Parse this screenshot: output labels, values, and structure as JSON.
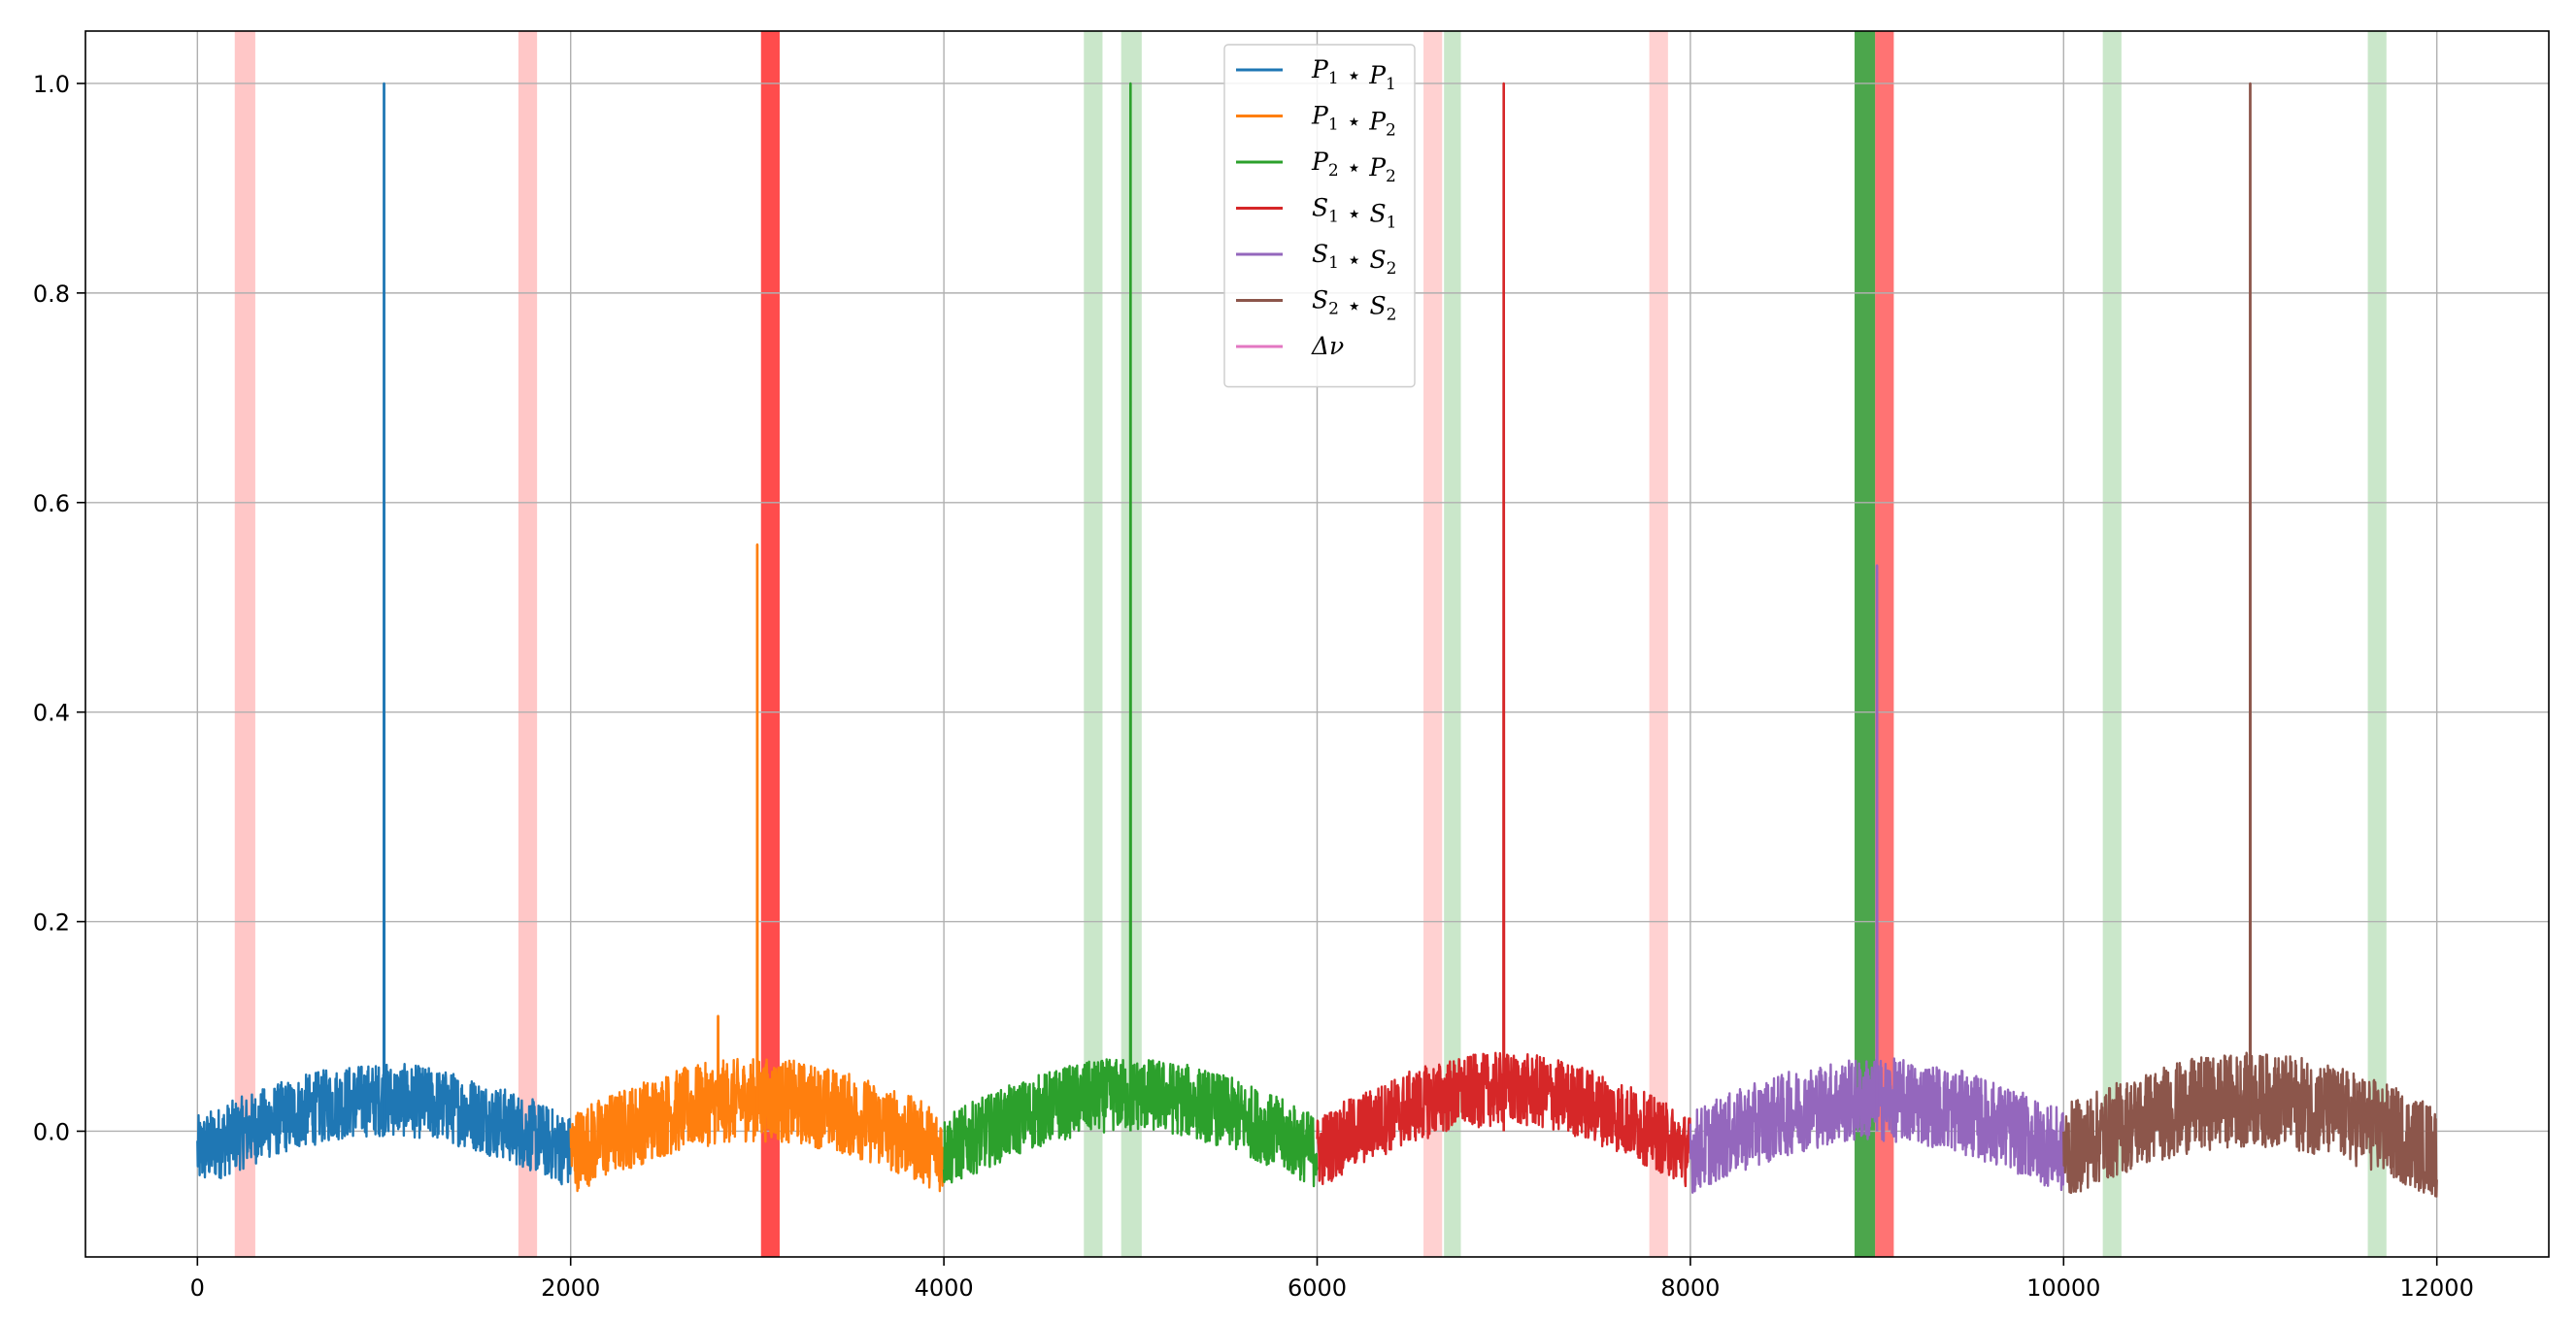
{
  "chart_data": {
    "type": "line",
    "title": "",
    "xlabel": "",
    "ylabel": "",
    "xlim": [
      -600,
      12600
    ],
    "ylim": [
      -0.12,
      1.05
    ],
    "grid": true,
    "legend_position": "top-center",
    "x_ticks": [
      {
        "value": 0,
        "label": "0"
      },
      {
        "value": 2000,
        "label": "2000"
      },
      {
        "value": 4000,
        "label": "4000"
      },
      {
        "value": 6000,
        "label": "6000"
      },
      {
        "value": 8000,
        "label": "8000"
      },
      {
        "value": 10000,
        "label": "10000"
      },
      {
        "value": 12000,
        "label": "12000"
      }
    ],
    "y_ticks": [
      {
        "value": 0.0,
        "label": "0.0"
      },
      {
        "value": 0.2,
        "label": "0.2"
      },
      {
        "value": 0.4,
        "label": "0.4"
      },
      {
        "value": 0.6,
        "label": "0.6"
      },
      {
        "value": 0.8,
        "label": "0.8"
      },
      {
        "value": 1.0,
        "label": "1.0"
      }
    ],
    "series": [
      {
        "name": "P1 ⋆ P1",
        "legend_base": "P",
        "legend_sub1": "1",
        "legend_base2": "P",
        "legend_sub2": "1",
        "color": "#1f77b4",
        "x_range": [
          0,
          2000
        ],
        "hump_peak": 0.03,
        "noise_amplitude": 0.035,
        "spikes": [
          {
            "x": 1000,
            "y": 1.0
          }
        ]
      },
      {
        "name": "P1 ⋆ P2",
        "legend_base": "P",
        "legend_sub1": "1",
        "legend_base2": "P",
        "legend_sub2": "2",
        "color": "#ff7f0e",
        "x_range": [
          2000,
          4000
        ],
        "hump_peak": 0.03,
        "noise_amplitude": 0.04,
        "spikes": [
          {
            "x": 3000,
            "y": 0.56
          },
          {
            "x": 2790,
            "y": 0.11
          }
        ]
      },
      {
        "name": "P2 ⋆ P2",
        "legend_base": "P",
        "legend_sub1": "2",
        "legend_base2": "P",
        "legend_sub2": "2",
        "color": "#2ca02c",
        "x_range": [
          4000,
          6000
        ],
        "hump_peak": 0.035,
        "noise_amplitude": 0.035,
        "spikes": [
          {
            "x": 5000,
            "y": 1.0
          }
        ]
      },
      {
        "name": "S1 ⋆ S1",
        "legend_base": "S",
        "legend_sub1": "1",
        "legend_base2": "S",
        "legend_sub2": "1",
        "color": "#d62728",
        "x_range": [
          6000,
          8000
        ],
        "hump_peak": 0.04,
        "noise_amplitude": 0.035,
        "spikes": [
          {
            "x": 7000,
            "y": 1.0
          }
        ]
      },
      {
        "name": "S1 ⋆ S2",
        "legend_base": "S",
        "legend_sub1": "1",
        "legend_base2": "S",
        "legend_sub2": "2",
        "color": "#9467bd",
        "x_range": [
          8000,
          10000
        ],
        "hump_peak": 0.03,
        "noise_amplitude": 0.04,
        "spikes": [
          {
            "x": 9000,
            "y": 0.54
          }
        ]
      },
      {
        "name": "S2 ⋆ S2",
        "legend_base": "S",
        "legend_sub1": "2",
        "legend_base2": "S",
        "legend_sub2": "2",
        "color": "#8c564b",
        "x_range": [
          10000,
          12000
        ],
        "hump_peak": 0.03,
        "noise_amplitude": 0.045,
        "spikes": [
          {
            "x": 11000,
            "y": 1.0
          }
        ]
      },
      {
        "name": "Δν",
        "legend_base": "Δν",
        "color": "#e377c2",
        "x_range": [],
        "spikes": []
      }
    ],
    "shaded_bands": [
      {
        "x0": 200,
        "x1": 310,
        "color": "#ff9999",
        "opacity": 0.55
      },
      {
        "x0": 1720,
        "x1": 1820,
        "color": "#ff9999",
        "opacity": 0.55
      },
      {
        "x0": 3020,
        "x1": 3120,
        "color": "#ff0000",
        "opacity": 0.7
      },
      {
        "x0": 4750,
        "x1": 4850,
        "color": "#2ca02c",
        "opacity": 0.25
      },
      {
        "x0": 4950,
        "x1": 5060,
        "color": "#2ca02c",
        "opacity": 0.25
      },
      {
        "x0": 6570,
        "x1": 6670,
        "color": "#ff9999",
        "opacity": 0.45
      },
      {
        "x0": 6680,
        "x1": 6770,
        "color": "#2ca02c",
        "opacity": 0.25
      },
      {
        "x0": 7780,
        "x1": 7880,
        "color": "#ff9999",
        "opacity": 0.45
      },
      {
        "x0": 8880,
        "x1": 8990,
        "color": "#008000",
        "opacity": 0.7
      },
      {
        "x0": 8990,
        "x1": 9090,
        "color": "#ff0000",
        "opacity": 0.55
      },
      {
        "x0": 10210,
        "x1": 10310,
        "color": "#2ca02c",
        "opacity": 0.25
      },
      {
        "x0": 11630,
        "x1": 11730,
        "color": "#2ca02c",
        "opacity": 0.25
      }
    ]
  }
}
